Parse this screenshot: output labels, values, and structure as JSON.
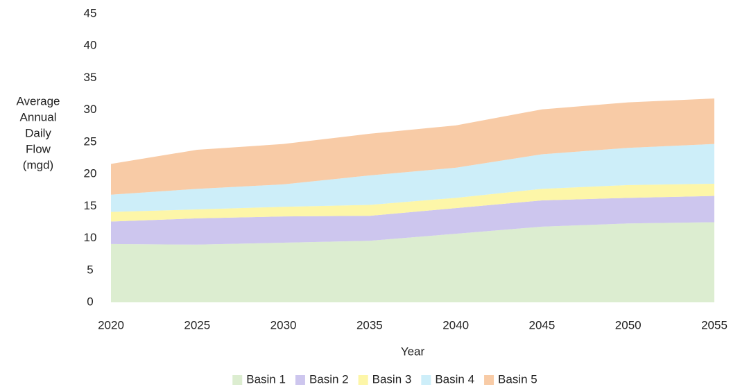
{
  "chart_data": {
    "type": "area",
    "stacked": true,
    "ylabel": [
      "Average",
      "Annual",
      "Daily",
      "Flow",
      "(mgd)"
    ],
    "xlabel": "Year",
    "x": [
      2020,
      2025,
      2030,
      2035,
      2040,
      2045,
      2050,
      2055
    ],
    "xlim": [
      2020,
      2055
    ],
    "xticks": [
      2020,
      2025,
      2030,
      2035,
      2040,
      2045,
      2050,
      2055
    ],
    "ylim": [
      0,
      45
    ],
    "yticks": [
      0,
      5,
      10,
      15,
      20,
      25,
      30,
      35,
      40,
      45
    ],
    "grid": false,
    "legend": "bottom",
    "series": [
      {
        "name": "Basin 1",
        "color": "#dcedd0",
        "values": [
          9.1,
          9.0,
          9.3,
          9.6,
          10.7,
          11.8,
          12.3,
          12.5
        ]
      },
      {
        "name": "Basin 2",
        "color": "#cdc6ee",
        "values": [
          3.5,
          4.1,
          4.1,
          3.9,
          4.0,
          4.1,
          4.0,
          4.1
        ]
      },
      {
        "name": "Basin 3",
        "color": "#fdf6a8",
        "values": [
          1.5,
          1.4,
          1.5,
          1.7,
          1.6,
          1.8,
          2.0,
          1.9
        ]
      },
      {
        "name": "Basin 4",
        "color": "#cdeef9",
        "values": [
          2.7,
          3.2,
          3.5,
          4.6,
          4.7,
          5.4,
          5.8,
          6.2
        ]
      },
      {
        "name": "Basin 5",
        "color": "#f8cba6",
        "values": [
          4.8,
          6.1,
          6.3,
          6.5,
          6.6,
          7.0,
          7.1,
          7.1
        ]
      }
    ]
  }
}
